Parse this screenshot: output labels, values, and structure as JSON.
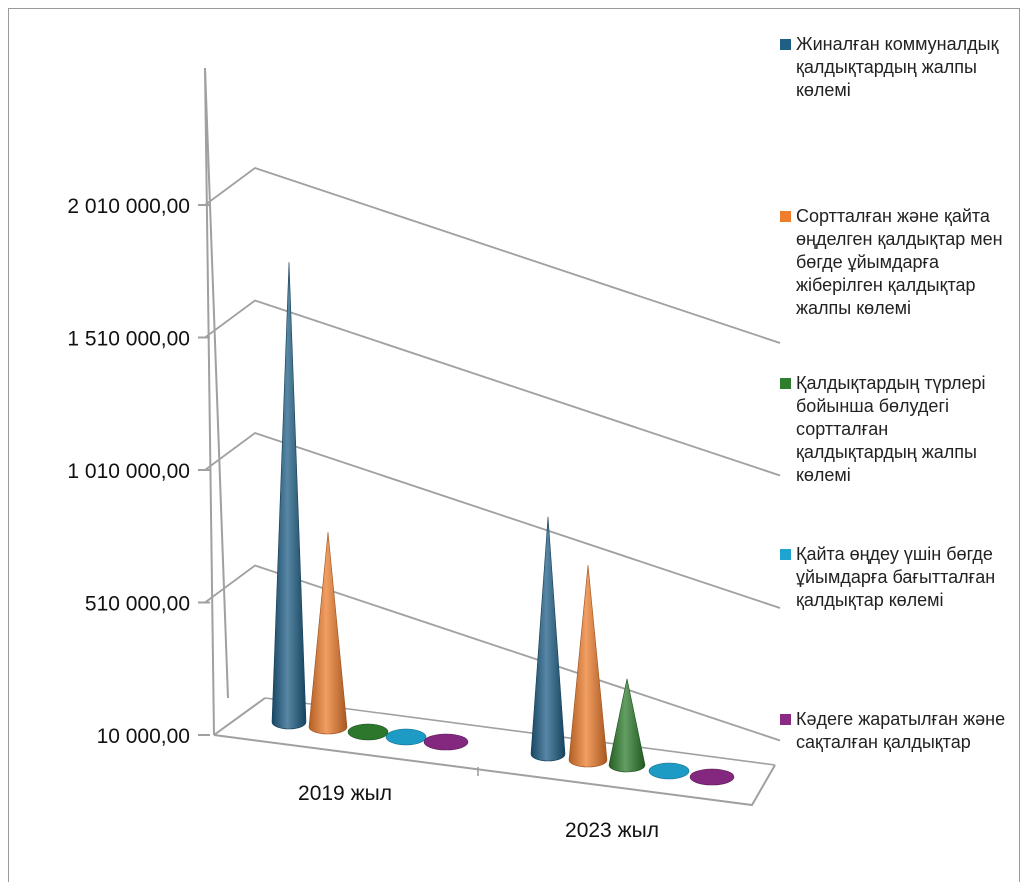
{
  "chart_data": {
    "type": "bar",
    "subtype": "3d-cone",
    "categories": [
      "2019 жыл",
      "2023 жыл"
    ],
    "yticks": [
      "10 000,00",
      "510 000,00",
      "1 010 000,00",
      "1 510 000,00",
      "2 010 000,00"
    ],
    "ylim": [
      10000,
      2010000
    ],
    "grid": true,
    "legend_position": "right",
    "series": [
      {
        "name": "Жиналған коммуналдық қалдықтардың жалпы көлемі",
        "color": "#1f5f86",
        "values": [
          1700000,
          860000
        ]
      },
      {
        "name": "Сортталған және қайта өңделген қалдықтар  мен бөгде ұйымдарға жіберілген қалдықтар жалпы көлемі",
        "color": "#ee7d2e",
        "values": [
          700000,
          700000
        ]
      },
      {
        "name": "Қалдықтардың түрлері бойынша бөлудегі сортталған қалдықтардың жалпы көлемі",
        "color": "#2f7d2f",
        "values": [
          30000,
          290000
        ]
      },
      {
        "name": "Қайта өңдеу үшін бөгде ұйымдарға бағытталған қалдықтар көлемі",
        "color": "#1fa3cf",
        "values": [
          25000,
          25000
        ]
      },
      {
        "name": "Кәдеге жаратылған және сақталған қалдықтар",
        "color": "#8a2a85",
        "values": [
          20000,
          20000
        ]
      }
    ]
  }
}
